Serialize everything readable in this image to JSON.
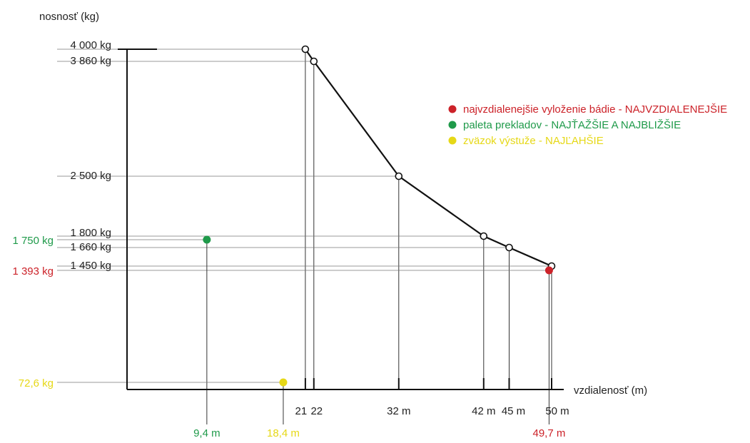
{
  "chart_data": {
    "type": "line",
    "ylabel": "nosnosť (kg)",
    "xlabel": "vzdialenosť (m)",
    "xlim": [
      0,
      50
    ],
    "ylim": [
      0,
      4000
    ],
    "grid": false,
    "legend_position": "top-right",
    "curve": [
      {
        "x": 21,
        "y": 4000
      },
      {
        "x": 22,
        "y": 3860
      },
      {
        "x": 32,
        "y": 2500
      },
      {
        "x": 42,
        "y": 1800
      },
      {
        "x": 45,
        "y": 1660
      },
      {
        "x": 50,
        "y": 1450
      }
    ],
    "y_tick_labels": [
      {
        "value": 4000,
        "text": "4 000 kg"
      },
      {
        "value": 3860,
        "text": "3 860 kg"
      },
      {
        "value": 2500,
        "text": "2 500 kg"
      },
      {
        "value": 1800,
        "text": "1 800 kg"
      },
      {
        "value": 1660,
        "text": "1 660 kg"
      },
      {
        "value": 1450,
        "text": "1 450 kg"
      }
    ],
    "x_tick_labels": [
      {
        "value": 21,
        "text": "21"
      },
      {
        "value": 22,
        "text": "22"
      },
      {
        "value": 32,
        "text": "32 m"
      },
      {
        "value": 42,
        "text": "42 m"
      },
      {
        "value": 45,
        "text": "45 m"
      },
      {
        "value": 50,
        "text": "50 m"
      }
    ],
    "loads": [
      {
        "key": "basket",
        "color": "#cc2229",
        "x": 49.7,
        "y": 1393,
        "x_label": "49,7 m",
        "y_label": "1 393 kg",
        "legend": "najvzdialenejšie vyloženie bádie - NAJVZDIALENEJŠIE"
      },
      {
        "key": "pallet",
        "color": "#1f9a4a",
        "x": 9.4,
        "y": 1750,
        "x_label": "9,4 m",
        "y_label": "1 750 kg",
        "legend": "paleta prekladov - NAJŤAŽŠIE A NAJBLIŽŠIE"
      },
      {
        "key": "rebar",
        "color": "#e6d817",
        "x": 18.4,
        "y": 72.6,
        "x_label": "18,4 m",
        "y_label": "72,6 kg",
        "legend": "zväzok výstuže - NAJĽAHŠIE"
      }
    ]
  }
}
